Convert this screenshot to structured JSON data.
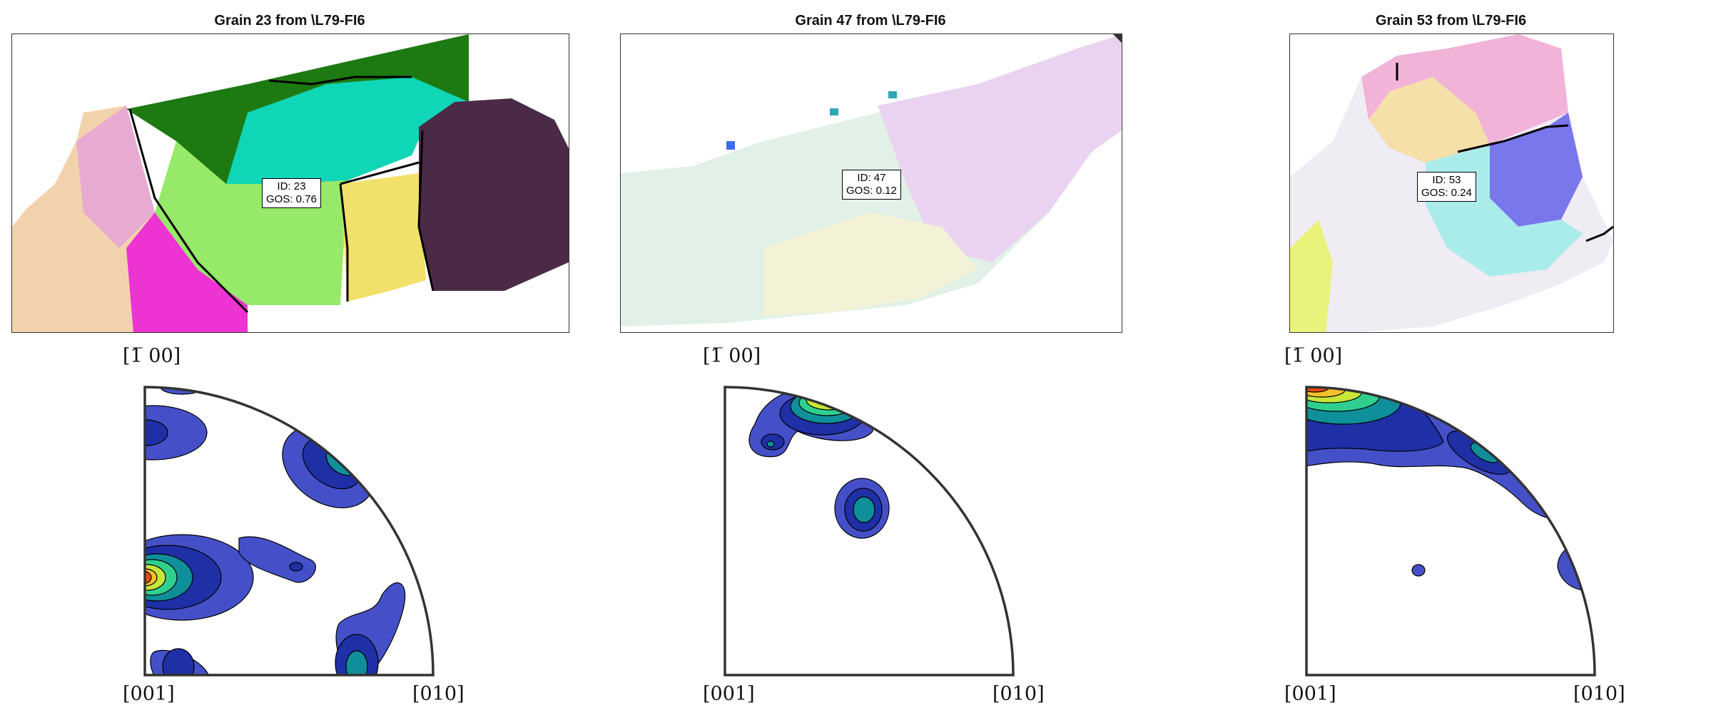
{
  "panels": [
    {
      "title": "Grain 23 from \\L79-FI6",
      "id_label": "ID: 23",
      "gos_label": "GOS: 0.76",
      "axis_top": "[1̅ 00]",
      "axis_origin": "[001]",
      "axis_right": "[010]",
      "colors": [
        "#f2d2ad",
        "#e7aad0",
        "#ee33d3",
        "#1d7a12",
        "#10d6b8",
        "#97e969",
        "#f1e16a",
        "#4b2a47"
      ]
    },
    {
      "title": "Grain 47 from \\L79-FI6",
      "id_label": "ID: 47",
      "gos_label": "GOS: 0.12",
      "axis_top": "[1̅ 00]",
      "axis_origin": "[001]",
      "axis_right": "[010]",
      "colors": [
        "#e2f1e8",
        "#ead3f0",
        "#f3f1d6",
        "#3b6cf0",
        "#2da8b8"
      ]
    },
    {
      "title": "Grain 53 from \\L79-FI6",
      "id_label": "ID: 53",
      "gos_label": "GOS: 0.24",
      "axis_top": "[1̅ 00]",
      "axis_origin": "[001]",
      "axis_right": "[010]",
      "colors": [
        "#f4e0a8",
        "#f2b3d8",
        "#7a77ec",
        "#a9ecea",
        "#f0ecf4",
        "#e9f27b"
      ]
    }
  ],
  "contour_colors": [
    "#4550c8",
    "#1f2fa6",
    "#0f8f9a",
    "#2fcf8f",
    "#c8e53a",
    "#f5c12a",
    "#ea4b12"
  ]
}
